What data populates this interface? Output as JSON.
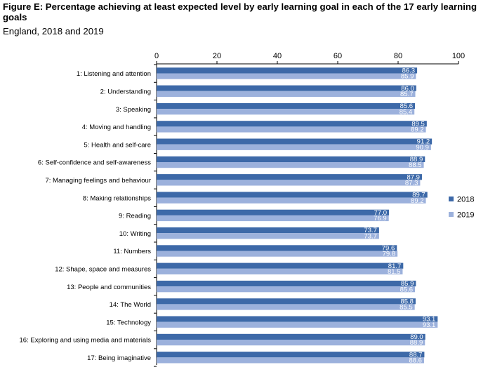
{
  "title": "Figure E: Percentage achieving at least expected level by early learning goal in each of the 17 early learning goals",
  "subtitle": "England, 2018 and 2019",
  "chart_data": {
    "type": "bar",
    "orientation": "horizontal",
    "title": "Figure E: Percentage achieving at least expected level by early learning goal in each of the 17 early learning goals",
    "subtitle": "England, 2018 and 2019",
    "xlim": [
      0,
      100
    ],
    "x_ticks": [
      0,
      20,
      40,
      60,
      80,
      100
    ],
    "x_axis_position": "top",
    "grid": false,
    "legend_position": "right",
    "categories": [
      "1: Listening and attention",
      "2: Understanding",
      "3: Speaking",
      "4: Moving and handling",
      "5: Health and self-care",
      "6: Self-confidence and self-awareness",
      "7: Managing feelings and behaviour",
      "8: Making relationships",
      "9: Reading",
      "10: Writing",
      "11: Numbers",
      "12: Shape, space and measures",
      "13: People and communities",
      "14: The World",
      "15: Technology",
      "16: Exploring and using media and materials",
      "17: Being imaginative"
    ],
    "series": [
      {
        "name": "2018",
        "color": "#3d69a8",
        "values": [
          86.3,
          86.0,
          85.6,
          89.5,
          91.2,
          88.9,
          87.9,
          89.7,
          77.0,
          73.7,
          79.6,
          81.7,
          85.9,
          85.8,
          93.1,
          89.0,
          88.7
        ],
        "labels": [
          "86.3",
          "86.0",
          "85.6",
          "89.5",
          "91.2",
          "88.9",
          "87.9",
          "89.7",
          "77.0",
          "73.7",
          "79.6",
          "81.7",
          "85.9",
          "85.8",
          "93.1",
          "89.0",
          "88.7"
        ]
      },
      {
        "name": "2019",
        "color": "#9cb1dc",
        "values": [
          85.9,
          85.7,
          85.4,
          89.2,
          90.9,
          88.5,
          87.3,
          89.2,
          76.9,
          73.7,
          79.8,
          81.5,
          85.6,
          85.5,
          93.1,
          88.9,
          88.6
        ],
        "labels": [
          "85.9",
          "85.7",
          "85.4",
          "89.2",
          "90.9",
          "88.5",
          "87.3",
          "89.2",
          "76.9",
          "73.7",
          "79.8",
          "81.5",
          "85.6",
          "85.5",
          "93.1",
          "88.9",
          "88.6"
        ]
      }
    ]
  }
}
